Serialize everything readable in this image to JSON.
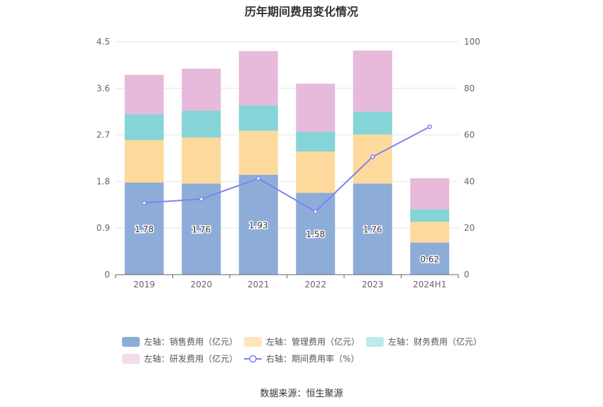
{
  "title": "历年期间费用变化情况",
  "source_note": "数据来源：恒生聚源",
  "chart_data": {
    "type": "bar",
    "stacked": true,
    "categories": [
      "2019",
      "2020",
      "2021",
      "2022",
      "2023",
      "2024H1"
    ],
    "left_axis": {
      "ylim": [
        0,
        4.5
      ],
      "ticks": [
        "0",
        "0.9",
        "1.8",
        "2.7",
        "3.6",
        "4.5"
      ]
    },
    "right_axis": {
      "ylim": [
        0,
        100
      ],
      "ticks": [
        "0",
        "20",
        "40",
        "60",
        "80",
        "100"
      ]
    },
    "grid": true,
    "legend_position": "bottom",
    "series": [
      {
        "name": "左轴：销售费用（亿元）",
        "axis": "left",
        "type": "bar",
        "color": "#8eacd8",
        "values": [
          1.78,
          1.76,
          1.93,
          1.58,
          1.76,
          0.62
        ],
        "data_labels": [
          "1.78",
          "1.76",
          "1.93",
          "1.58",
          "1.76",
          "0.62"
        ]
      },
      {
        "name": "左轴：管理费用（亿元）",
        "axis": "left",
        "type": "bar",
        "color": "#fed99c",
        "values": [
          0.82,
          0.89,
          0.85,
          0.8,
          0.95,
          0.4
        ]
      },
      {
        "name": "左轴：财务费用（亿元）",
        "axis": "left",
        "type": "bar",
        "color": "#84d4d8",
        "values": [
          0.5,
          0.52,
          0.49,
          0.38,
          0.44,
          0.24
        ]
      },
      {
        "name": "左轴：研发费用（亿元）",
        "axis": "left",
        "type": "bar",
        "color": "#e7b9da",
        "values": [
          0.76,
          0.81,
          1.05,
          0.93,
          1.18,
          0.6
        ]
      },
      {
        "name": "右轴：期间费用率（%）",
        "axis": "right",
        "type": "line",
        "color": "#7f83f0",
        "values": [
          30.8,
          32.5,
          41.3,
          27.1,
          50.6,
          63.5
        ]
      }
    ]
  },
  "legend": [
    {
      "label": "左轴：销售费用（亿元）",
      "kind": "swatch",
      "color": "#8eacd8"
    },
    {
      "label": "左轴：管理费用（亿元）",
      "kind": "swatch",
      "color": "#fee5bc"
    },
    {
      "label": "左轴：财务费用（亿元）",
      "kind": "swatch",
      "color": "#bfe9eb"
    },
    {
      "label": "左轴：研发费用（亿元）",
      "kind": "swatch",
      "color": "#f3dbec"
    },
    {
      "label": "右轴：期间费用率（%）",
      "kind": "line",
      "color": "#7f83f0"
    }
  ]
}
